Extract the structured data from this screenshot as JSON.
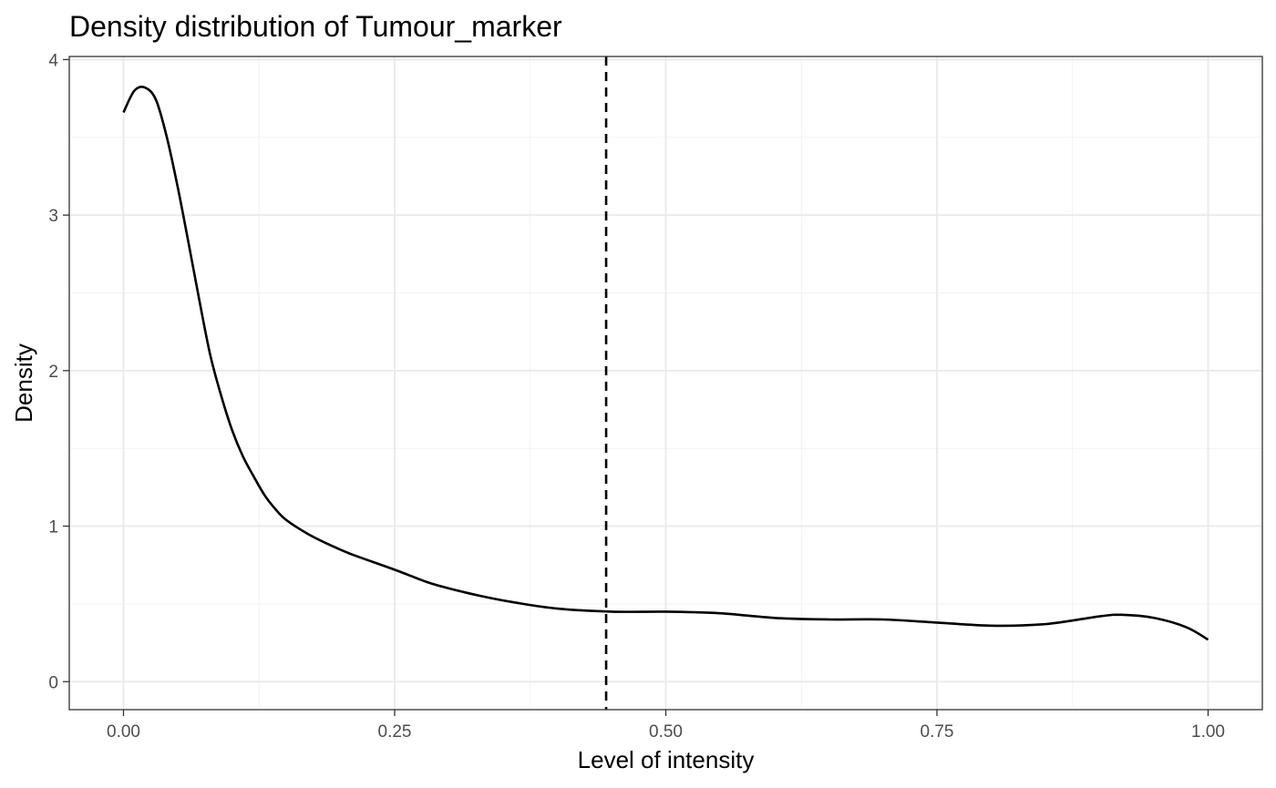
{
  "chart_data": {
    "type": "line",
    "title": "Density distribution of Tumour_marker",
    "xlabel": "Level of intensity",
    "ylabel": "Density",
    "xlim": [
      -0.05,
      1.05
    ],
    "ylim": [
      -0.18,
      4.02
    ],
    "x_ticks": [
      0,
      0.25,
      0.5,
      0.75,
      1
    ],
    "x_tick_labels": [
      "0.00",
      "0.25",
      "0.50",
      "0.75",
      "1.00"
    ],
    "y_ticks": [
      0,
      1,
      2,
      3,
      4
    ],
    "y_tick_labels": [
      "0",
      "1",
      "2",
      "3",
      "4"
    ],
    "x_minor_ticks": [
      0.125,
      0.375,
      0.625,
      0.875
    ],
    "y_minor_ticks": [
      0.5,
      1.5,
      2.5,
      3.5
    ],
    "grid": true,
    "series": [
      {
        "x": [
          0,
          0.01,
          0.02,
          0.03,
          0.04,
          0.05,
          0.06,
          0.07,
          0.08,
          0.09,
          0.1,
          0.11,
          0.12,
          0.13,
          0.14,
          0.15,
          0.17,
          0.19,
          0.21,
          0.25,
          0.28,
          0.3,
          0.33,
          0.36,
          0.4,
          0.45,
          0.5,
          0.55,
          0.6,
          0.65,
          0.7,
          0.75,
          0.8,
          0.85,
          0.9,
          0.92,
          0.95,
          0.98,
          1.0
        ],
        "y": [
          3.66,
          3.8,
          3.82,
          3.74,
          3.5,
          3.18,
          2.82,
          2.45,
          2.1,
          1.84,
          1.62,
          1.45,
          1.32,
          1.2,
          1.11,
          1.04,
          0.95,
          0.88,
          0.82,
          0.72,
          0.64,
          0.6,
          0.55,
          0.51,
          0.47,
          0.45,
          0.45,
          0.44,
          0.41,
          0.4,
          0.4,
          0.38,
          0.36,
          0.37,
          0.42,
          0.43,
          0.41,
          0.35,
          0.27
        ]
      }
    ],
    "threshold_x": 0.445
  }
}
